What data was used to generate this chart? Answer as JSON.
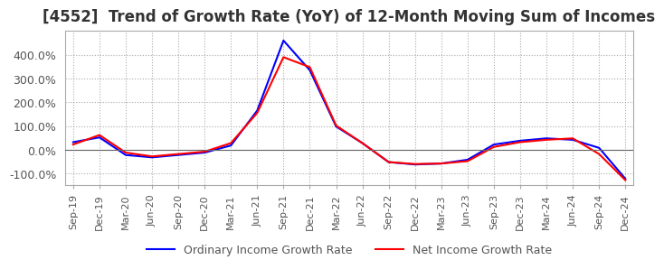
{
  "title": "[4552]  Trend of Growth Rate (YoY) of 12-Month Moving Sum of Incomes",
  "title_fontsize": 12,
  "ylim": [
    -150,
    500
  ],
  "yticks": [
    -100,
    0,
    100,
    200,
    300,
    400
  ],
  "background_color": "#ffffff",
  "plot_bg_color": "#ffffff",
  "grid_color": "#aaaaaa",
  "legend_labels": [
    "Ordinary Income Growth Rate",
    "Net Income Growth Rate"
  ],
  "legend_colors": [
    "#0000ff",
    "#ff0000"
  ],
  "x_labels": [
    "Sep-19",
    "Dec-19",
    "Mar-20",
    "Jun-20",
    "Sep-20",
    "Dec-20",
    "Mar-21",
    "Jun-21",
    "Sep-21",
    "Dec-21",
    "Mar-22",
    "Jun-22",
    "Sep-22",
    "Dec-22",
    "Mar-23",
    "Jun-23",
    "Sep-23",
    "Dec-23",
    "Mar-24",
    "Jun-24",
    "Sep-24",
    "Dec-24"
  ],
  "ordinary_income": [
    32,
    52,
    -22,
    -32,
    -22,
    -12,
    18,
    165,
    460,
    335,
    98,
    28,
    -52,
    -62,
    -58,
    -42,
    22,
    38,
    48,
    42,
    8,
    -122
  ],
  "net_income": [
    22,
    62,
    -12,
    -28,
    -18,
    -8,
    28,
    155,
    390,
    348,
    102,
    28,
    -52,
    -60,
    -58,
    -48,
    12,
    32,
    42,
    48,
    -18,
    -128
  ]
}
